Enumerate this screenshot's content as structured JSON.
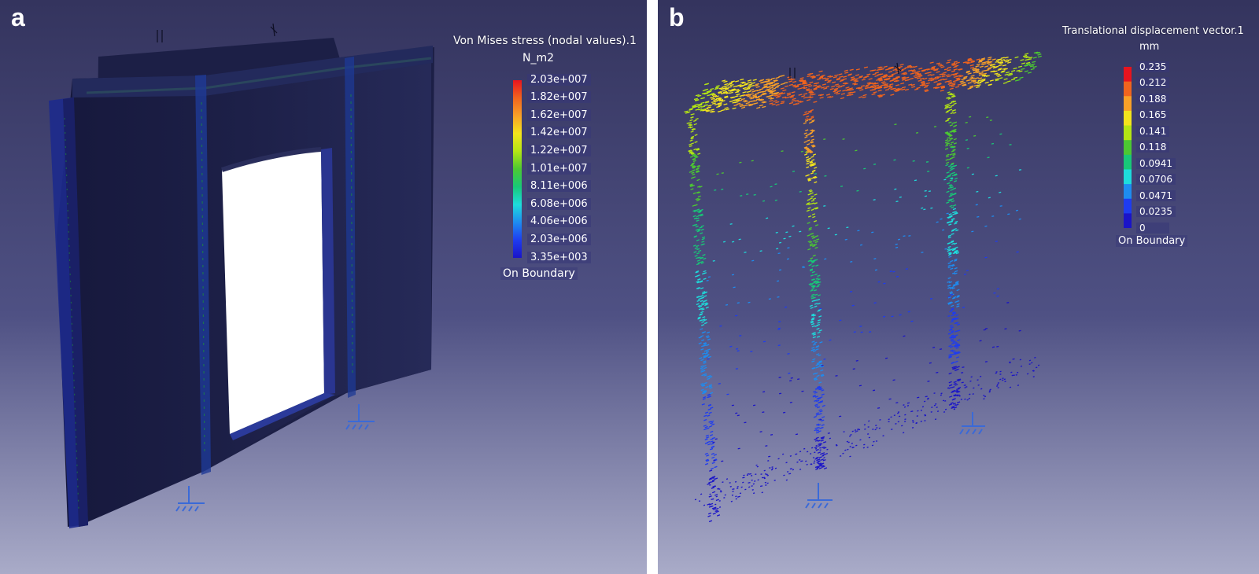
{
  "figure": {
    "panel_a": {
      "letter": "a",
      "legend": {
        "title": "Von Mises stress (nodal values).1",
        "unit": "N_m2",
        "ticks": [
          "2.03e+007",
          "1.82e+007",
          "1.62e+007",
          "1.42e+007",
          "1.22e+007",
          "1.01e+007",
          "8.11e+006",
          "6.08e+006",
          "4.06e+006",
          "2.03e+006",
          "3.35e+003"
        ],
        "colors": [
          "#e8141e",
          "#f0641e",
          "#f8a028",
          "#f4e41c",
          "#b4e614",
          "#4cc832",
          "#18c878",
          "#1edcdc",
          "#1e8cf0",
          "#1e3cf0",
          "#1a14c8"
        ],
        "boundary": "On Boundary"
      }
    },
    "panel_b": {
      "letter": "b",
      "legend": {
        "title": "Translational displacement vector.1",
        "unit": "mm",
        "ticks": [
          "0.235",
          "0.212",
          "0.188",
          "0.165",
          "0.141",
          "0.118",
          "0.0941",
          "0.0706",
          "0.0471",
          "0.0235",
          "0"
        ],
        "colors": [
          "#e8141e",
          "#f0641e",
          "#f8a028",
          "#f4e41c",
          "#b4e614",
          "#4cc832",
          "#18c878",
          "#1edcdc",
          "#1e8cf0",
          "#1e3cf0",
          "#1a14c8"
        ],
        "boundary": "On Boundary"
      }
    }
  }
}
